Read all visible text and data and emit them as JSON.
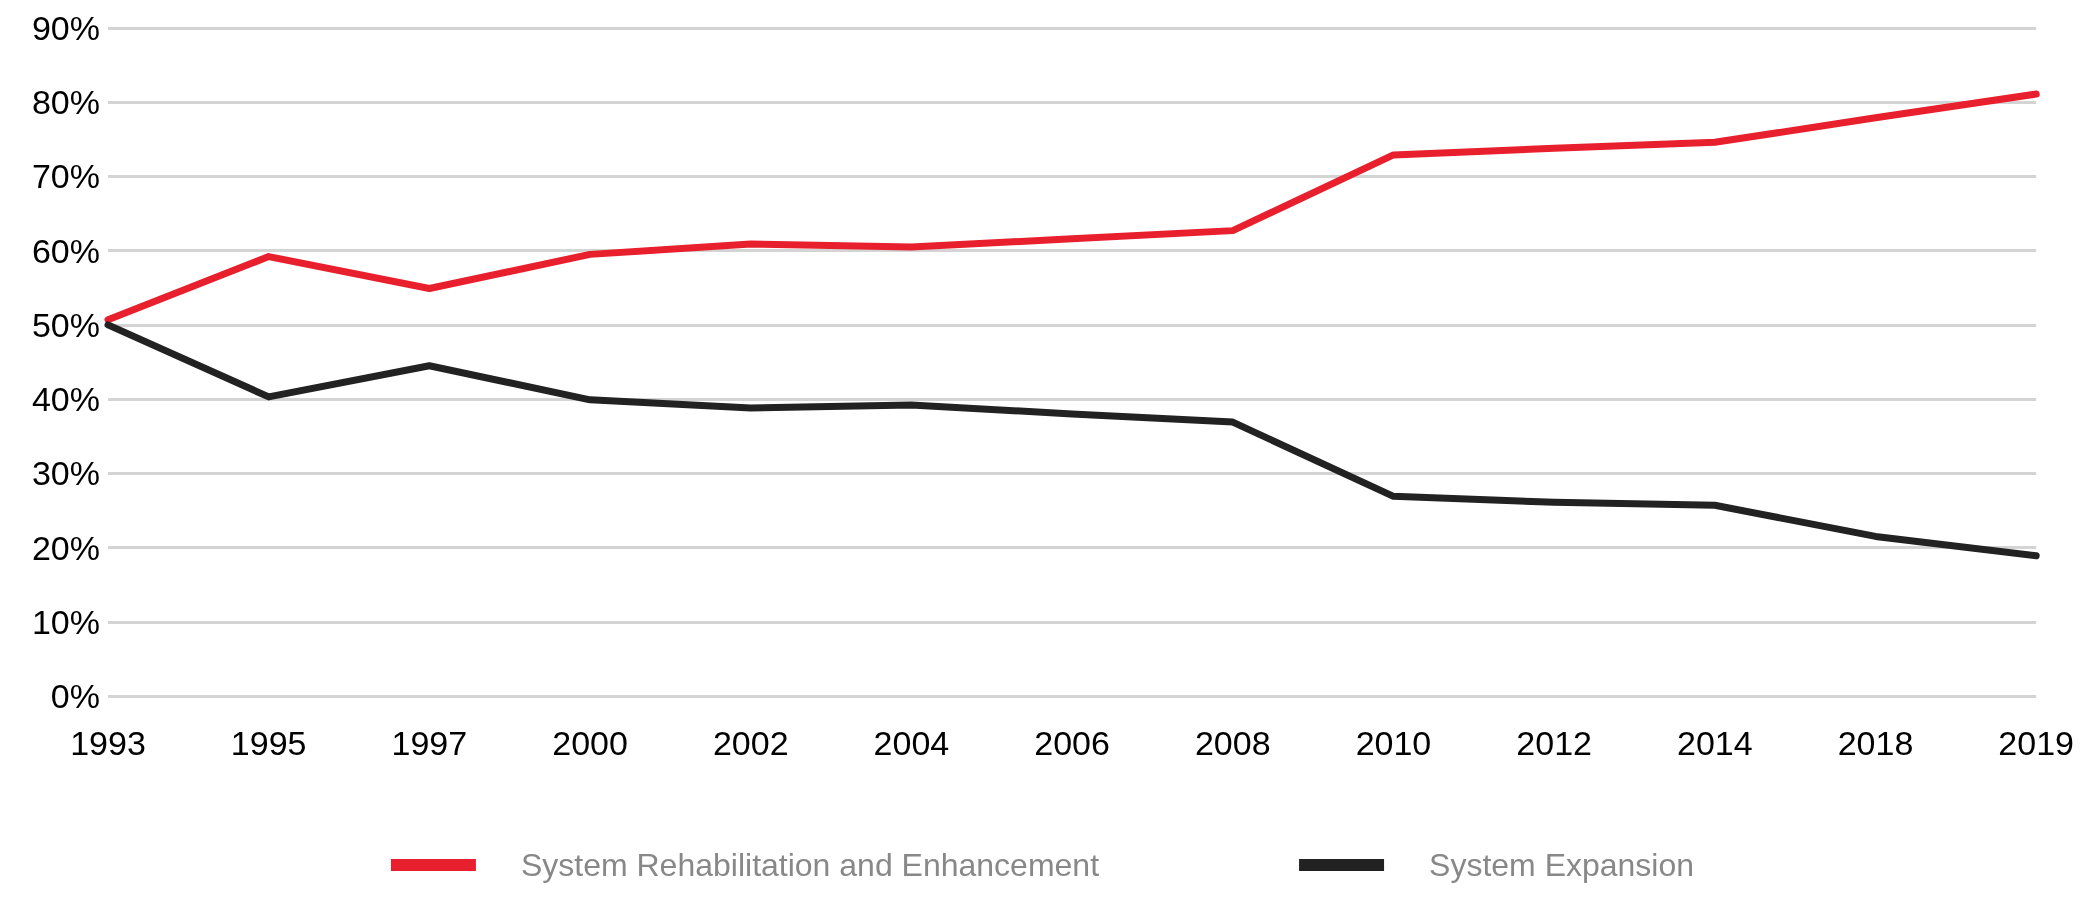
{
  "chart_data": {
    "type": "line",
    "categories": [
      "1993",
      "1995",
      "1997",
      "2000",
      "2002",
      "2004",
      "2006",
      "2008",
      "2010",
      "2012",
      "2014",
      "2018",
      "2019"
    ],
    "series": [
      {
        "name": "System Rehabilitation and Enhancement",
        "color": "#e8202e",
        "values": [
          50.7,
          59.2,
          54.9,
          59.5,
          60.9,
          60.5,
          61.6,
          62.7,
          72.9,
          73.8,
          74.6,
          77.9,
          81.1
        ]
      },
      {
        "name": "System Expansion",
        "color": "#222222",
        "values": [
          50,
          40.3,
          44.5,
          39.9,
          38.8,
          39.2,
          38,
          36.9,
          26.9,
          26.1,
          25.7,
          21.5,
          18.9
        ]
      }
    ],
    "ylim": [
      0,
      90
    ],
    "yticks": [
      {
        "value": 0,
        "label": "0%"
      },
      {
        "value": 10,
        "label": "10%"
      },
      {
        "value": 20,
        "label": "20%"
      },
      {
        "value": 30,
        "label": "30%"
      },
      {
        "value": 40,
        "label": "40%"
      },
      {
        "value": 50,
        "label": "50%"
      },
      {
        "value": 60,
        "label": "60%"
      },
      {
        "value": 70,
        "label": "70%"
      },
      {
        "value": 80,
        "label": "80%"
      },
      {
        "value": 90,
        "label": "90%"
      }
    ],
    "grid": "y",
    "legend": "bottom",
    "marker": "none",
    "line_style": "solid"
  }
}
